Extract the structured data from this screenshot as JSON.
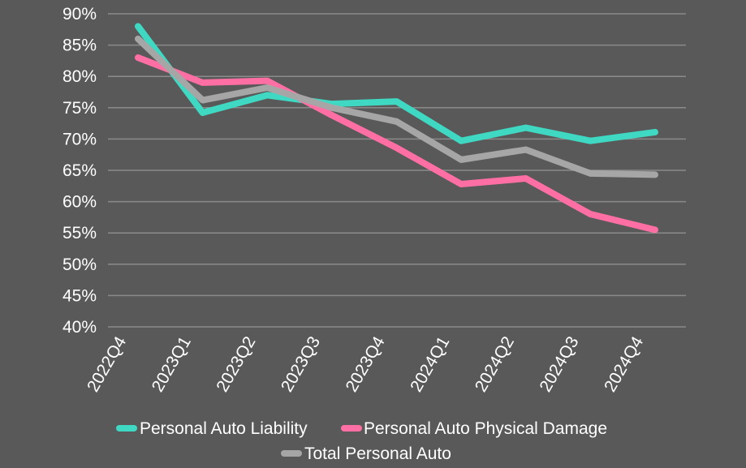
{
  "chart_data": {
    "type": "line",
    "categories": [
      "2022Q4",
      "2023Q1",
      "2023Q2",
      "2023Q3",
      "2023Q4",
      "2024Q1",
      "2024Q2",
      "2024Q3",
      "2024Q4"
    ],
    "series": [
      {
        "name": "Personal Auto Liability",
        "color": "#3fd9c3",
        "values": [
          88.0,
          74.2,
          77.0,
          75.6,
          76.0,
          69.7,
          71.8,
          69.7,
          71.1
        ]
      },
      {
        "name": "Personal Auto Physical Damage",
        "color": "#ff6fa3",
        "values": [
          83.0,
          79.0,
          79.3,
          73.8,
          68.6,
          62.8,
          63.7,
          58.0,
          55.5
        ]
      },
      {
        "name": "Total Personal Auto",
        "color": "#a6a6a6",
        "values": [
          86.0,
          76.2,
          78.2,
          75.0,
          72.8,
          66.7,
          68.3,
          64.5,
          64.3
        ]
      }
    ],
    "yticks": [
      "40%",
      "45%",
      "50%",
      "55%",
      "60%",
      "65%",
      "70%",
      "75%",
      "80%",
      "85%",
      "90%"
    ],
    "ylim": [
      40,
      90
    ],
    "grid": true,
    "legend_position": "bottom",
    "background": "#595959"
  }
}
